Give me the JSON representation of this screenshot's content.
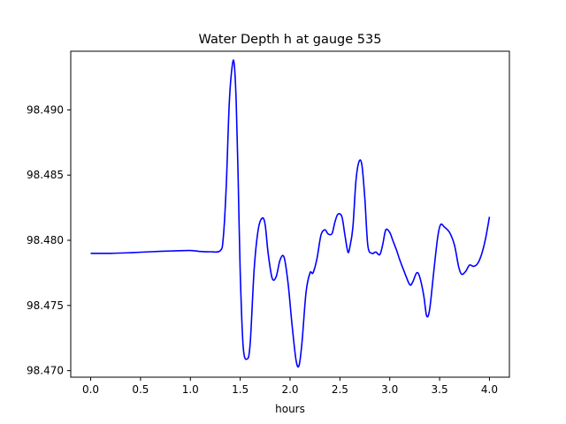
{
  "chart_data": {
    "type": "line",
    "title": "Water Depth h at gauge 535",
    "xlabel": "hours",
    "ylabel": "",
    "xlim": [
      -0.2,
      4.2
    ],
    "ylim": [
      98.4695,
      98.4945
    ],
    "xticks": [
      0.0,
      0.5,
      1.0,
      1.5,
      2.0,
      2.5,
      3.0,
      3.5,
      4.0
    ],
    "xtick_labels": [
      "0.0",
      "0.5",
      "1.0",
      "1.5",
      "2.0",
      "2.5",
      "3.0",
      "3.5",
      "4.0"
    ],
    "yticks": [
      98.47,
      98.475,
      98.48,
      98.485,
      98.49
    ],
    "ytick_labels": [
      "98.470",
      "98.475",
      "98.480",
      "98.485",
      "98.490"
    ],
    "grid": false,
    "series": [
      {
        "color": "#0000ff",
        "x": [
          0.0,
          0.2,
          0.4,
          0.6,
          0.8,
          1.0,
          1.1,
          1.2,
          1.3,
          1.33,
          1.36,
          1.39,
          1.42,
          1.44,
          1.46,
          1.48,
          1.5,
          1.53,
          1.57,
          1.6,
          1.64,
          1.68,
          1.72,
          1.75,
          1.78,
          1.82,
          1.86,
          1.9,
          1.94,
          1.98,
          2.02,
          2.06,
          2.09,
          2.12,
          2.16,
          2.2,
          2.23,
          2.27,
          2.31,
          2.35,
          2.38,
          2.42,
          2.45,
          2.48,
          2.52,
          2.55,
          2.58,
          2.6,
          2.63,
          2.66,
          2.69,
          2.72,
          2.75,
          2.78,
          2.82,
          2.86,
          2.9,
          2.93,
          2.96,
          3.0,
          3.03,
          3.07,
          3.1,
          3.15,
          3.2,
          3.23,
          3.27,
          3.3,
          3.34,
          3.37,
          3.4,
          3.44,
          3.48,
          3.51,
          3.55,
          3.6,
          3.65,
          3.69,
          3.72,
          3.76,
          3.8,
          3.84,
          3.88,
          3.92,
          3.96,
          4.0
        ],
        "y": [
          98.479,
          98.479,
          98.47905,
          98.47912,
          98.47918,
          98.47922,
          98.47914,
          98.47912,
          98.4792,
          98.4802,
          98.4842,
          98.4905,
          98.4934,
          98.4935,
          98.4905,
          98.4845,
          98.4775,
          98.4718,
          98.4709,
          98.4721,
          98.4778,
          98.4808,
          98.4817,
          98.4812,
          98.479,
          98.4771,
          98.4772,
          98.4785,
          98.4787,
          98.4767,
          98.4735,
          98.4708,
          98.4704,
          98.4722,
          98.476,
          98.4775,
          98.4775,
          98.4786,
          98.4804,
          98.4808,
          98.4805,
          98.4805,
          98.4814,
          98.482,
          98.4818,
          98.4804,
          98.4791,
          98.4795,
          98.481,
          98.4845,
          98.486,
          98.4858,
          98.4832,
          98.4796,
          98.479,
          98.4791,
          98.4789,
          98.4797,
          98.4808,
          98.4806,
          98.48,
          98.4792,
          98.4785,
          98.4775,
          98.4766,
          98.4768,
          98.4775,
          98.4772,
          98.4758,
          98.4742,
          98.4747,
          98.4775,
          98.4802,
          98.4812,
          98.481,
          98.4806,
          98.4796,
          98.478,
          98.4774,
          98.4776,
          98.4781,
          98.478,
          98.4782,
          98.4789,
          98.4801,
          98.4818
        ]
      }
    ]
  }
}
